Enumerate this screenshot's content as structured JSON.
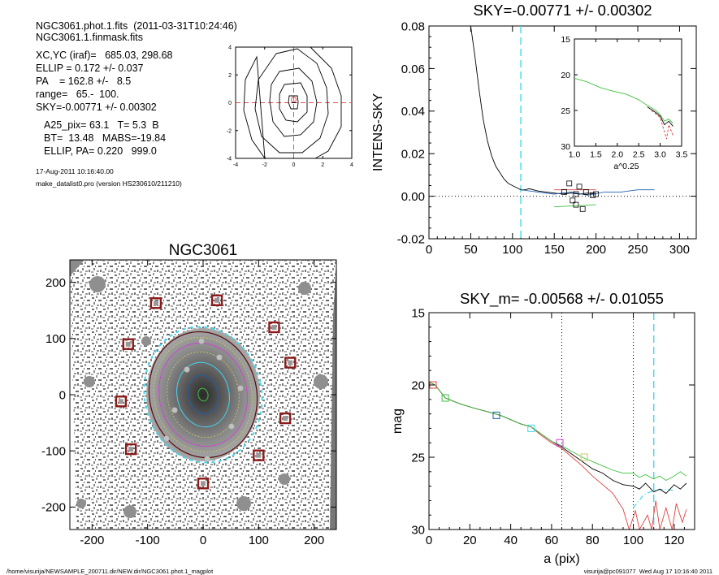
{
  "info": {
    "line1": "NGC3061.phot.1.fits  (2011-03-31T10:24:46)",
    "line2": "NGC3061.1.finmask.fits",
    "line3": "XC,YC (iraf)=   685.03, 298.68",
    "line4": "ELLIP = 0.172 +/- 0.037",
    "line5": "PA    = 162.8 +/-   8.5",
    "line6": "range=   65.-  100.",
    "line7": "SKY=-0.00771 +/- 0.00302",
    "line8": "A25_pix= 63.1   T= 5.3  B",
    "line9": "BT=  13.48   MABS=-19.84",
    "line10": "ELLIP, PA= 0.220   999.0",
    "date": "17-Aug-2011 10:16:40.00",
    "program": "make_datalist0.pro (version HS230610/211210)"
  },
  "footer": {
    "left": "/home/visurija/NEWSAMPLE_200711.dir/NEW.dir/NGC3061.phot.1_magplot",
    "right": "visurija@pc091077  Wed Aug 17 10:16:40 2011"
  },
  "chart_data": [
    {
      "type": "contour",
      "id": "centroid-contour",
      "xlim": [
        -4,
        4
      ],
      "ylim": [
        -4,
        4
      ],
      "xticks": [
        "-4",
        "-2",
        "0",
        "2",
        "4"
      ],
      "yticks": [
        "-4",
        "-2",
        "0",
        "2",
        "4"
      ],
      "colors": {
        "line": "#000000",
        "crosshair": "#e05050"
      }
    },
    {
      "type": "line",
      "id": "sky-profile",
      "title": "SKY=-0.00771 +/- 0.00302",
      "xlabel": "",
      "ylabel": "INTENS-SKY",
      "xlim": [
        0,
        320
      ],
      "ylim": [
        -0.02,
        0.08
      ],
      "xticks": [
        "0",
        "50",
        "100",
        "150",
        "200",
        "250",
        "300"
      ],
      "yticks": [
        "-0.02",
        "0.00",
        "0.02",
        "0.04",
        "0.06",
        "0.08"
      ],
      "vline_x": 110,
      "black_profile": [
        [
          50,
          0.08
        ],
        [
          55,
          0.066
        ],
        [
          60,
          0.05
        ],
        [
          65,
          0.036
        ],
        [
          70,
          0.026
        ],
        [
          75,
          0.019
        ],
        [
          80,
          0.014
        ],
        [
          85,
          0.011
        ],
        [
          90,
          0.008
        ],
        [
          95,
          0.006
        ],
        [
          100,
          0.005
        ],
        [
          105,
          0.004
        ],
        [
          110,
          0.003
        ],
        [
          115,
          0.003
        ],
        [
          120,
          0.0035
        ],
        [
          130,
          0.0025
        ],
        [
          140,
          0.002
        ],
        [
          150,
          0.0015
        ],
        [
          160,
          0.001
        ],
        [
          170,
          0.0015
        ],
        [
          180,
          0.001
        ],
        [
          190,
          0.0015
        ],
        [
          200,
          0.001
        ]
      ],
      "blue_profile": [
        [
          110,
          0.003
        ],
        [
          130,
          0.002
        ],
        [
          150,
          0.001
        ],
        [
          170,
          0.002
        ],
        [
          190,
          0.0005
        ],
        [
          210,
          0.002
        ],
        [
          230,
          0.002
        ],
        [
          250,
          0.003
        ],
        [
          270,
          0.003
        ]
      ],
      "red_profile": [
        [
          150,
          0.003
        ],
        [
          200,
          0.003
        ]
      ],
      "green_profile": [
        [
          150,
          -0.005
        ],
        [
          200,
          -0.004
        ]
      ],
      "squares": [
        [
          162,
          0.002
        ],
        [
          168,
          0.006
        ],
        [
          172,
          -0.002
        ],
        [
          176,
          -0.004
        ],
        [
          180,
          0.0045
        ],
        [
          184,
          -0.006
        ],
        [
          188,
          0.002
        ],
        [
          196,
          0.0005
        ],
        [
          200,
          0.001
        ],
        [
          176,
          0.001
        ]
      ],
      "colors": {
        "black": "#000000",
        "blue": "#2060b0",
        "red": "#e04040",
        "green": "#40c040",
        "cyan": "#40d8f0"
      }
    },
    {
      "type": "line",
      "id": "inset-profile",
      "xlabel": "a^0.25",
      "ylabel": "",
      "xlim": [
        1.0,
        3.5
      ],
      "ylim": [
        15,
        30
      ],
      "yinverted": true,
      "xticks": [
        "1.0",
        "1.5",
        "2.0",
        "2.5",
        "3.0",
        "3.5"
      ],
      "yticks": [
        "15",
        "20",
        "25",
        "30"
      ],
      "green": [
        [
          1.0,
          20.5
        ],
        [
          1.3,
          21.0
        ],
        [
          1.6,
          21.8
        ],
        [
          1.9,
          22.3
        ],
        [
          2.2,
          22.7
        ],
        [
          2.5,
          23.5
        ],
        [
          2.7,
          24.3
        ],
        [
          2.9,
          25.0
        ],
        [
          3.0,
          25.6
        ],
        [
          3.1,
          26.5
        ],
        [
          3.2,
          26.2
        ],
        [
          3.3,
          26.8
        ]
      ],
      "black": [
        [
          2.7,
          24.5
        ],
        [
          2.9,
          25.3
        ],
        [
          3.0,
          25.8
        ],
        [
          3.1,
          27.0
        ],
        [
          3.2,
          26.5
        ],
        [
          3.3,
          27.2
        ]
      ],
      "red": [
        [
          2.8,
          25.0
        ],
        [
          3.0,
          26.0
        ],
        [
          3.1,
          28.0
        ],
        [
          3.15,
          29.0
        ],
        [
          3.2,
          27.0
        ],
        [
          3.3,
          28.5
        ]
      ],
      "colors": {
        "black": "#000000",
        "red": "#e04040",
        "green": "#40c040"
      }
    },
    {
      "type": "image",
      "id": "galaxy-image",
      "title": "NGC3061",
      "xlim": [
        -240,
        240
      ],
      "ylim": [
        -240,
        240
      ],
      "xticks": [
        "-200",
        "-100",
        "0",
        "100",
        "200"
      ],
      "yticks": [
        "-200",
        "-100",
        "0",
        "100",
        "200"
      ],
      "markers": [
        [
          -85,
          163
        ],
        [
          25,
          168
        ],
        [
          128,
          120
        ],
        [
          -135,
          90
        ],
        [
          157,
          57
        ],
        [
          -148,
          -12
        ],
        [
          148,
          -42
        ],
        [
          -130,
          -97
        ],
        [
          100,
          -108
        ],
        [
          0,
          -158
        ]
      ],
      "colors": {
        "marker": "#8b1a1a",
        "ellipse_cyan": "#40d8f0",
        "ellipse_dark": "#5a1010",
        "ellipse_yellow": "#c8c860",
        "ellipse_blue": "#2060b0",
        "ellipse_magenta": "#d040d0"
      }
    },
    {
      "type": "line",
      "id": "mag-profile",
      "title": "SKY_m= -0.00568 +/- 0.01055",
      "xlabel": "a (pix)",
      "ylabel": "mag",
      "xlim": [
        0,
        130
      ],
      "ylim": [
        15,
        30
      ],
      "yinverted": true,
      "xticks": [
        "0",
        "20",
        "40",
        "60",
        "80",
        "100",
        "120"
      ],
      "yticks": [
        "15",
        "20",
        "25",
        "30"
      ],
      "vlines_dotted": [
        65,
        100
      ],
      "vline_dashed": 110,
      "green": [
        [
          0,
          19.8
        ],
        [
          3,
          20.0
        ],
        [
          8,
          20.9
        ],
        [
          15,
          21.3
        ],
        [
          22,
          21.6
        ],
        [
          30,
          21.9
        ],
        [
          35,
          22.1
        ],
        [
          40,
          22.4
        ],
        [
          45,
          22.7
        ],
        [
          50,
          22.9
        ],
        [
          55,
          23.4
        ],
        [
          60,
          23.9
        ],
        [
          65,
          24.2
        ],
        [
          70,
          24.6
        ],
        [
          75,
          25.0
        ],
        [
          80,
          25.3
        ],
        [
          85,
          25.6
        ],
        [
          90,
          25.9
        ],
        [
          95,
          26.1
        ],
        [
          100,
          26.1
        ],
        [
          103,
          26.4
        ],
        [
          106,
          26.2
        ],
        [
          110,
          26.5
        ],
        [
          113,
          26.3
        ],
        [
          116,
          26.6
        ],
        [
          120,
          26.3
        ],
        [
          123,
          26.0
        ],
        [
          126,
          26.3
        ]
      ],
      "black": [
        [
          0,
          19.8
        ],
        [
          3,
          20.0
        ],
        [
          8,
          20.9
        ],
        [
          15,
          21.3
        ],
        [
          22,
          21.6
        ],
        [
          30,
          21.9
        ],
        [
          35,
          22.1
        ],
        [
          40,
          22.4
        ],
        [
          45,
          22.7
        ],
        [
          50,
          22.9
        ],
        [
          55,
          23.4
        ],
        [
          60,
          23.9
        ],
        [
          65,
          24.3
        ],
        [
          70,
          24.8
        ],
        [
          75,
          25.3
        ],
        [
          80,
          25.8
        ],
        [
          85,
          26.1
        ],
        [
          90,
          26.6
        ],
        [
          95,
          26.9
        ],
        [
          100,
          27.0
        ],
        [
          103,
          27.2
        ],
        [
          106,
          26.8
        ],
        [
          110,
          27.4
        ],
        [
          113,
          27.2
        ],
        [
          116,
          27.5
        ],
        [
          120,
          26.9
        ],
        [
          123,
          27.2
        ],
        [
          126,
          26.8
        ]
      ],
      "red": [
        [
          0,
          19.8
        ],
        [
          3,
          20.0
        ],
        [
          8,
          20.9
        ],
        [
          15,
          21.3
        ],
        [
          22,
          21.6
        ],
        [
          30,
          21.9
        ],
        [
          35,
          22.1
        ],
        [
          40,
          22.4
        ],
        [
          45,
          22.7
        ],
        [
          50,
          22.9
        ],
        [
          55,
          23.5
        ],
        [
          60,
          24.0
        ],
        [
          65,
          24.4
        ],
        [
          70,
          25.0
        ],
        [
          75,
          25.6
        ],
        [
          80,
          26.3
        ],
        [
          85,
          26.9
        ],
        [
          90,
          27.5
        ],
        [
          95,
          28.6
        ],
        [
          98,
          30
        ],
        [
          101,
          28.7
        ],
        [
          103,
          30
        ],
        [
          107,
          29
        ],
        [
          109,
          30
        ],
        [
          111,
          28.0
        ],
        [
          113,
          30
        ],
        [
          116,
          28.5
        ],
        [
          119,
          30
        ],
        [
          121,
          28.2
        ],
        [
          124,
          29.5
        ],
        [
          126,
          28.6
        ]
      ],
      "cyan_dashdot": [
        [
          100,
          28.5
        ],
        [
          105,
          27.6
        ],
        [
          110,
          27.3
        ],
        [
          115,
          27.2
        ],
        [
          120,
          27.3
        ]
      ],
      "squares": [
        {
          "x": 2,
          "y": 20.0,
          "c": "#e04040"
        },
        {
          "x": 8,
          "y": 20.9,
          "c": "#40c040"
        },
        {
          "x": 33,
          "y": 22.1,
          "c": "#2060b0"
        },
        {
          "x": 50,
          "y": 23.0,
          "c": "#40d8f0"
        },
        {
          "x": 64,
          "y": 24.0,
          "c": "#d040d0"
        },
        {
          "x": 76,
          "y": 25.0,
          "c": "#c8c860"
        }
      ],
      "colors": {
        "black": "#000000",
        "red": "#e04040",
        "green": "#40c040",
        "cyan": "#40d8f0"
      }
    }
  ]
}
